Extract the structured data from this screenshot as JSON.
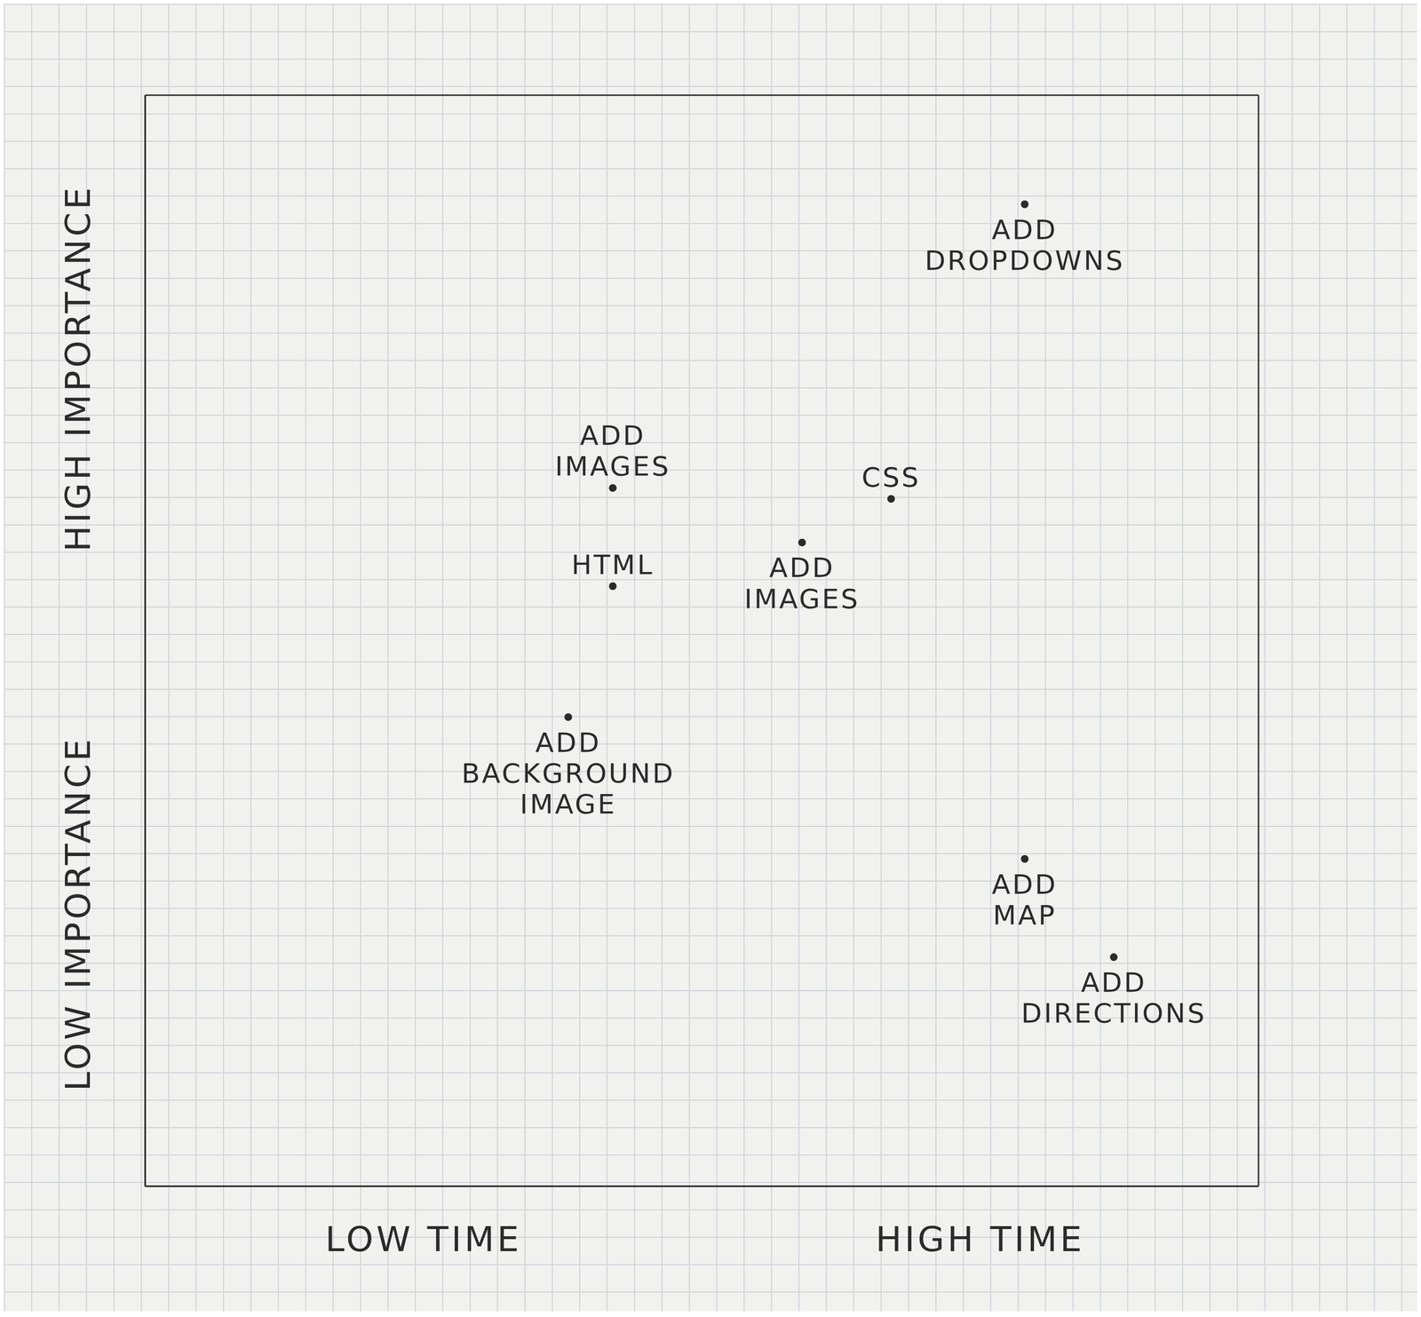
{
  "chart_data": {
    "type": "scatter",
    "x_labels": [
      "LOW TIME",
      "HIGH TIME"
    ],
    "y_labels": [
      "LOW IMPORTANCE",
      "HIGH IMPORTANCE"
    ],
    "labels": [
      "ADD DROPDOWNS",
      "CSS",
      "ADD IMAGES",
      "ADD IMAGES",
      "HTML",
      "ADD BACKGROUND IMAGE",
      "ADD MAP",
      "ADD DIRECTIONS"
    ],
    "x": [
      7.9,
      6.7,
      5.9,
      4.2,
      4.2,
      3.8,
      7.9,
      8.7
    ],
    "values": [
      9.0,
      6.3,
      5.9,
      6.4,
      5.5,
      4.3,
      3.0,
      2.1
    ],
    "xlim": [
      0,
      10
    ],
    "ylim": [
      0,
      10
    ],
    "xticks": [
      0,
      5,
      10
    ],
    "yticks": [
      0,
      5,
      10
    ],
    "grid": true,
    "tick_labels": false,
    "color": "#2b2b2b",
    "marker": "circle"
  }
}
